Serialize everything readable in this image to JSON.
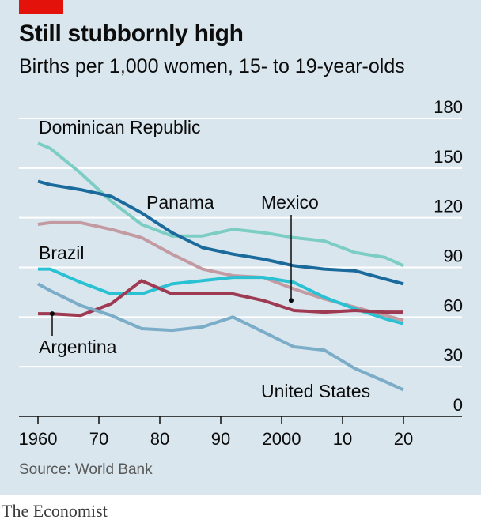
{
  "header": {
    "title": "Still stubbornly high",
    "subtitle": "Births per 1,000 women, 15- to 19-year-olds"
  },
  "footer": {
    "source": "Source: World Bank",
    "brand": "The Economist"
  },
  "colors": {
    "panel_bg": "#d9e6ee",
    "gridline": "#ffffff",
    "red_tag": "#e3120b"
  },
  "chart_data": {
    "type": "line",
    "title": "Still stubbornly high",
    "subtitle": "Births per 1,000 women, 15- to 19-year-olds",
    "xlabel": "",
    "ylabel": "",
    "xlim": [
      1960,
      2020
    ],
    "ylim": [
      0,
      180
    ],
    "y_ticks": [
      0,
      30,
      60,
      90,
      120,
      150,
      180
    ],
    "y_axis_side": "right",
    "grid": "horizontal",
    "x_ticks": [
      {
        "value": 1960,
        "label": "1960"
      },
      {
        "value": 1970,
        "label": "70"
      },
      {
        "value": 1980,
        "label": "80"
      },
      {
        "value": 1990,
        "label": "90"
      },
      {
        "value": 2000,
        "label": "2000"
      },
      {
        "value": 2010,
        "label": "10"
      },
      {
        "value": 2020,
        "label": "20"
      }
    ],
    "series": [
      {
        "name": "Dominican Republic",
        "color": "#7ccdc4",
        "x": [
          1960,
          1962,
          1967,
          1972,
          1977,
          1982,
          1987,
          1992,
          1997,
          2002,
          2007,
          2012,
          2017,
          2020
        ],
        "y": [
          165,
          162,
          147,
          130,
          116,
          109,
          109,
          113,
          111,
          108,
          106,
          99,
          96,
          91
        ]
      },
      {
        "name": "Panama",
        "color": "#1a6b9c",
        "x": [
          1960,
          1962,
          1967,
          1972,
          1977,
          1982,
          1987,
          1992,
          1997,
          2002,
          2007,
          2012,
          2017,
          2020
        ],
        "y": [
          142,
          140,
          137,
          133,
          123,
          111,
          102,
          98,
          95,
          91,
          89,
          88,
          83,
          80
        ]
      },
      {
        "name": "Mexico",
        "color": "#c39aa2",
        "x": [
          1960,
          1962,
          1967,
          1972,
          1977,
          1982,
          1987,
          1992,
          1997,
          2002,
          2007,
          2012,
          2017,
          2020
        ],
        "y": [
          116,
          117,
          117,
          113,
          108,
          98,
          89,
          85,
          84,
          77,
          71,
          66,
          61,
          58
        ]
      },
      {
        "name": "Brazil",
        "color": "#2ac1d3",
        "x": [
          1960,
          1962,
          1967,
          1972,
          1977,
          1982,
          1987,
          1992,
          1997,
          2002,
          2007,
          2012,
          2017,
          2020
        ],
        "y": [
          89,
          89,
          81,
          74,
          74,
          80,
          82,
          84,
          84,
          81,
          72,
          65,
          59,
          56
        ]
      },
      {
        "name": "Argentina",
        "color": "#9e3a52",
        "x": [
          1960,
          1962,
          1967,
          1972,
          1977,
          1982,
          1987,
          1992,
          1997,
          2002,
          2007,
          2012,
          2017,
          2020
        ],
        "y": [
          62,
          62,
          61,
          68,
          82,
          74,
          74,
          74,
          70,
          64,
          63,
          64,
          63,
          63
        ]
      },
      {
        "name": "United States",
        "color": "#7bacc8",
        "x": [
          1960,
          1962,
          1967,
          1972,
          1977,
          1982,
          1987,
          1992,
          1997,
          2002,
          2007,
          2012,
          2017,
          2020
        ],
        "y": [
          80,
          76,
          67,
          61,
          53,
          52,
          54,
          60,
          51,
          42,
          40,
          29,
          21,
          16
        ]
      }
    ],
    "annotations": [
      {
        "text": "Dominican Republic",
        "series": "Dominican Republic"
      },
      {
        "text": "Panama",
        "series": "Panama"
      },
      {
        "text": "Mexico",
        "series": "Mexico"
      },
      {
        "text": "Brazil",
        "series": "Brazil"
      },
      {
        "text": "Argentina",
        "series": "Argentina"
      },
      {
        "text": "United States",
        "series": "United States"
      }
    ]
  }
}
